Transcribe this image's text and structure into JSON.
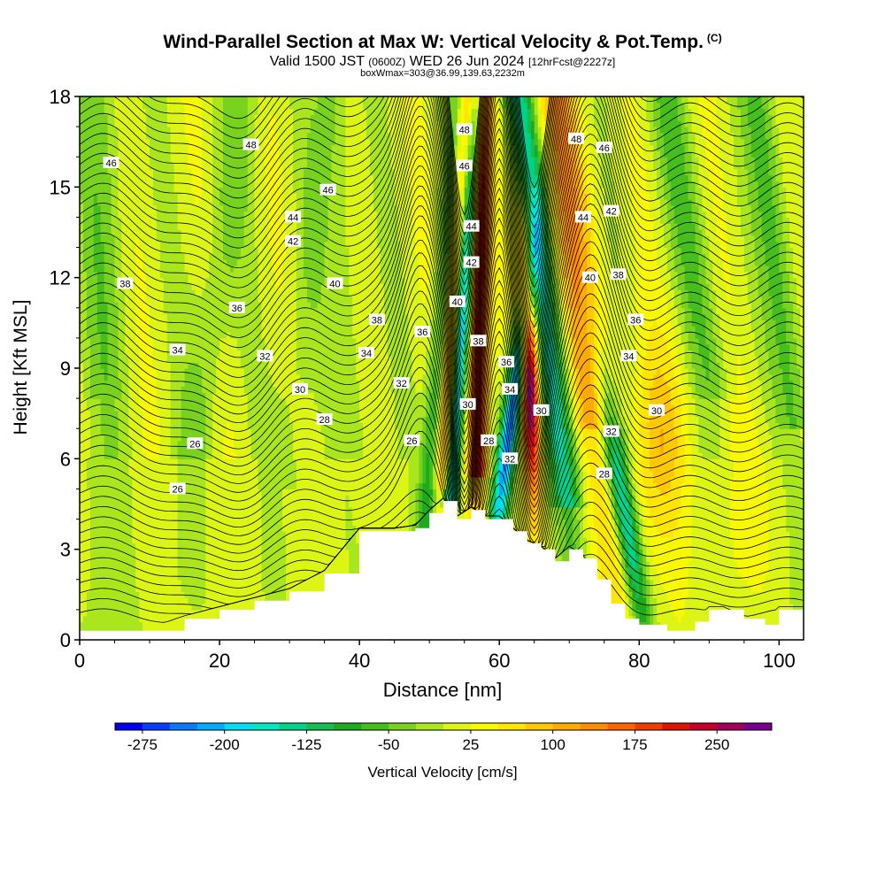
{
  "title": "Wind-Parallel Section at Max W: Vertical Velocity & Pot.Temp.",
  "copyright": "(C)",
  "subtitle": {
    "part1": "Valid 1500 JST",
    "part2": "(0600Z)",
    "part3": "WED 26 Jun 2024",
    "part4": "[12hrFcst@2227z]"
  },
  "subtitle2": "boxWmax=303@36.99,139.63,2232m",
  "chart_data": {
    "type": "heatmap",
    "xlabel": "Distance [nm]",
    "ylabel": "Height [Kft MSL]",
    "xlim": [
      0,
      103.5
    ],
    "ylim": [
      0,
      18
    ],
    "xticks": [
      0,
      20,
      40,
      60,
      80,
      100
    ],
    "yticks": [
      0,
      3,
      6,
      9,
      12,
      15,
      18
    ],
    "colorbar": {
      "title": "Vertical Velocity [cm/s]",
      "tick_labels": [
        "-275",
        "-200",
        "-125",
        "-50",
        "25",
        "100",
        "175",
        "250"
      ],
      "tick_values": [
        -275,
        -200,
        -125,
        -50,
        25,
        100,
        175,
        250
      ],
      "range": [
        -300,
        300
      ],
      "colors": [
        "#0000f0",
        "#0a3cff",
        "#0a78ff",
        "#00aaff",
        "#00dcf0",
        "#00e6be",
        "#00d28c",
        "#14be50",
        "#1eaa1e",
        "#46be1e",
        "#78d21e",
        "#aae61e",
        "#dcf514",
        "#f8f800",
        "#ffe600",
        "#ffc800",
        "#ffaa00",
        "#ff8c00",
        "#ff6400",
        "#f03c00",
        "#dc1400",
        "#c80028",
        "#a0005a",
        "#78008c"
      ]
    },
    "terrain_profile": {
      "x_nm": [
        0,
        5,
        10,
        15,
        20,
        25,
        30,
        35,
        40,
        45,
        48,
        50,
        52,
        54,
        56,
        58,
        60,
        62,
        64,
        66,
        68,
        70,
        72,
        74,
        76,
        78,
        80,
        82,
        84,
        86,
        88,
        90,
        92,
        95,
        98,
        100,
        103.5
      ],
      "height_kft": [
        0.3,
        0.3,
        0.3,
        0.7,
        1.0,
        1.3,
        1.6,
        2.2,
        3.6,
        3.6,
        3.7,
        4.2,
        4.6,
        4.0,
        4.3,
        4.0,
        4.0,
        3.6,
        3.2,
        3.0,
        2.6,
        3.0,
        2.7,
        2.0,
        1.2,
        0.7,
        0.5,
        0.5,
        0.3,
        0.3,
        0.6,
        1.0,
        1.0,
        0.7,
        0.5,
        1.0,
        1.0
      ]
    },
    "theta_contour_labels": [
      {
        "value": "46",
        "x": 4.5,
        "y": 15.8
      },
      {
        "value": "48",
        "x": 24.5,
        "y": 16.4
      },
      {
        "value": "46",
        "x": 35.5,
        "y": 14.9
      },
      {
        "value": "44",
        "x": 30.5,
        "y": 14.0
      },
      {
        "value": "42",
        "x": 30.5,
        "y": 13.2
      },
      {
        "value": "40",
        "x": 36.5,
        "y": 11.8
      },
      {
        "value": "38",
        "x": 6.5,
        "y": 11.8
      },
      {
        "value": "36",
        "x": 22.5,
        "y": 11.0
      },
      {
        "value": "38",
        "x": 42.5,
        "y": 10.6
      },
      {
        "value": "34",
        "x": 14.0,
        "y": 9.6
      },
      {
        "value": "32",
        "x": 26.5,
        "y": 9.4
      },
      {
        "value": "34",
        "x": 41.0,
        "y": 9.5
      },
      {
        "value": "32",
        "x": 46.0,
        "y": 8.5
      },
      {
        "value": "36",
        "x": 49.0,
        "y": 10.2
      },
      {
        "value": "30",
        "x": 31.5,
        "y": 8.3
      },
      {
        "value": "28",
        "x": 35.0,
        "y": 7.3
      },
      {
        "value": "26",
        "x": 16.5,
        "y": 6.5
      },
      {
        "value": "26",
        "x": 47.5,
        "y": 6.6
      },
      {
        "value": "26",
        "x": 14.0,
        "y": 5.0
      },
      {
        "value": "48",
        "x": 55.0,
        "y": 16.9
      },
      {
        "value": "46",
        "x": 55.0,
        "y": 15.7
      },
      {
        "value": "44",
        "x": 56.0,
        "y": 13.7
      },
      {
        "value": "42",
        "x": 56.0,
        "y": 12.5
      },
      {
        "value": "40",
        "x": 54.0,
        "y": 11.2
      },
      {
        "value": "38",
        "x": 57.0,
        "y": 9.9
      },
      {
        "value": "36",
        "x": 61.0,
        "y": 9.2
      },
      {
        "value": "34",
        "x": 61.5,
        "y": 8.3
      },
      {
        "value": "30",
        "x": 55.5,
        "y": 7.8
      },
      {
        "value": "28",
        "x": 58.5,
        "y": 6.6
      },
      {
        "value": "32",
        "x": 61.5,
        "y": 6.0
      },
      {
        "value": "30",
        "x": 66.0,
        "y": 7.6
      },
      {
        "value": "48",
        "x": 71.0,
        "y": 16.6
      },
      {
        "value": "46",
        "x": 75.0,
        "y": 16.3
      },
      {
        "value": "44",
        "x": 72.0,
        "y": 14.0
      },
      {
        "value": "42",
        "x": 76.0,
        "y": 14.2
      },
      {
        "value": "40",
        "x": 73.0,
        "y": 12.0
      },
      {
        "value": "38",
        "x": 77.0,
        "y": 12.1
      },
      {
        "value": "36",
        "x": 79.5,
        "y": 10.6
      },
      {
        "value": "34",
        "x": 78.5,
        "y": 9.4
      },
      {
        "value": "30",
        "x": 82.5,
        "y": 7.6
      },
      {
        "value": "32",
        "x": 76.0,
        "y": 6.9
      },
      {
        "value": "28",
        "x": 75.0,
        "y": 5.5
      }
    ]
  }
}
